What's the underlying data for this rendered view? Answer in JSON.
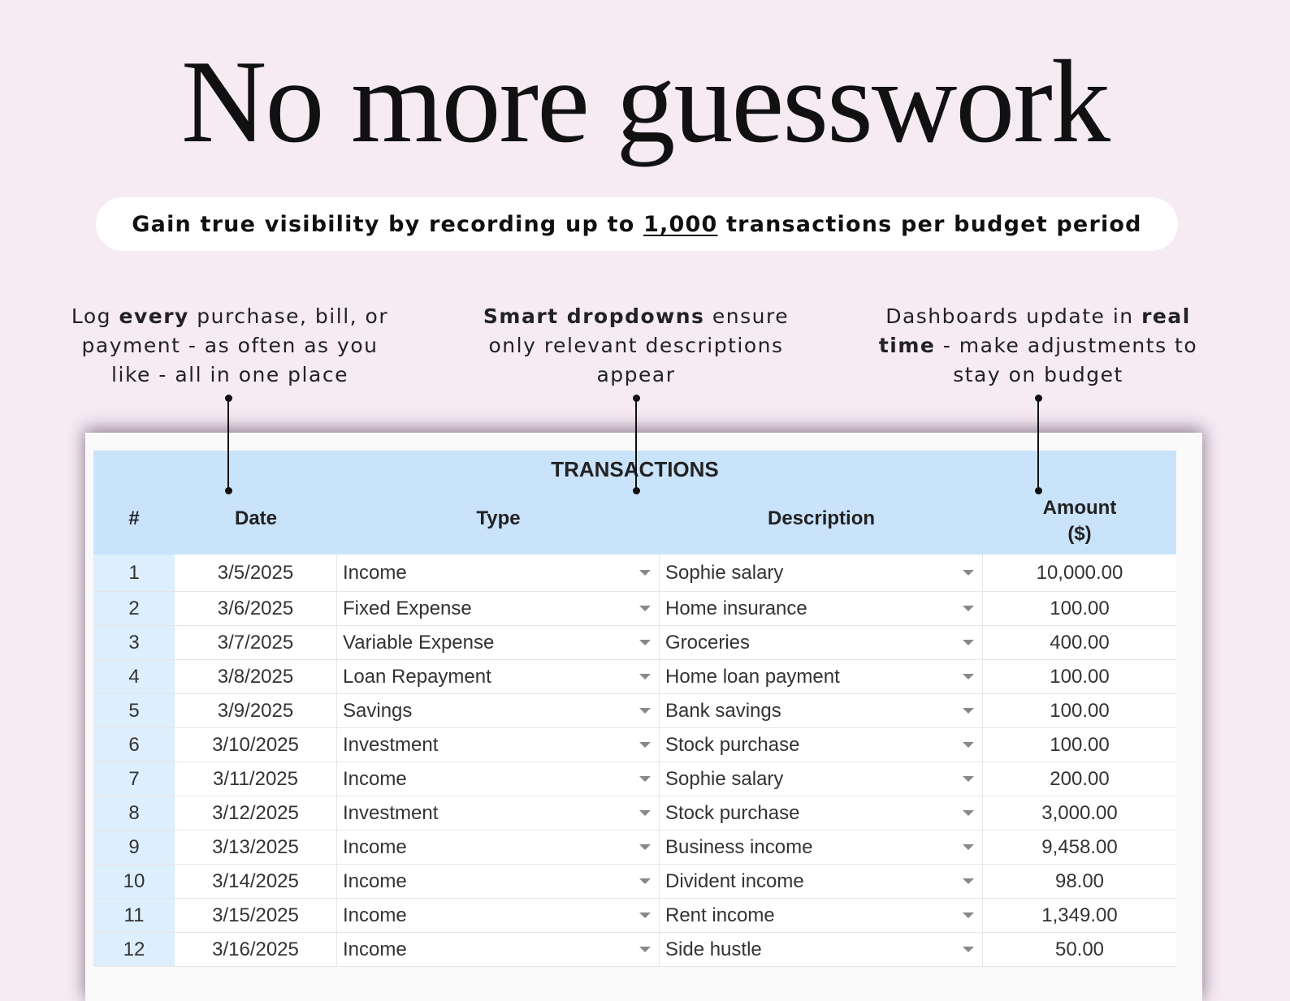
{
  "headline": "No more guesswork",
  "banner": {
    "before": "Gain true visibility by recording up to ",
    "highlight": "1,000",
    "after": " transactions per budget period"
  },
  "captions": [
    {
      "pre": "Log ",
      "bold": "every",
      "post": " purchase, bill, or payment - as often as you like - all in one place"
    },
    {
      "pre": "",
      "bold": "Smart dropdowns",
      "post": " ensure only relevant descriptions appear"
    },
    {
      "pre": "Dashboards update in ",
      "bold": "real time",
      "post": " - make adjustments to stay on budget"
    }
  ],
  "table": {
    "title": "TRANSACTIONS",
    "headers": {
      "num": "#",
      "date": "Date",
      "type": "Type",
      "description": "Description",
      "amount_line1": "Amount",
      "amount_line2": "($)"
    },
    "rows": [
      {
        "num": "1",
        "date": "3/5/2025",
        "type": "Income",
        "description": "Sophie salary",
        "amount": "10,000.00"
      },
      {
        "num": "2",
        "date": "3/6/2025",
        "type": "Fixed Expense",
        "description": "Home insurance",
        "amount": "100.00"
      },
      {
        "num": "3",
        "date": "3/7/2025",
        "type": "Variable Expense",
        "description": "Groceries",
        "amount": "400.00"
      },
      {
        "num": "4",
        "date": "3/8/2025",
        "type": "Loan Repayment",
        "description": "Home loan payment",
        "amount": "100.00"
      },
      {
        "num": "5",
        "date": "3/9/2025",
        "type": "Savings",
        "description": "Bank savings",
        "amount": "100.00"
      },
      {
        "num": "6",
        "date": "3/10/2025",
        "type": "Investment",
        "description": "Stock purchase",
        "amount": "100.00"
      },
      {
        "num": "7",
        "date": "3/11/2025",
        "type": "Income",
        "description": "Sophie salary",
        "amount": "200.00"
      },
      {
        "num": "8",
        "date": "3/12/2025",
        "type": "Investment",
        "description": "Stock purchase",
        "amount": "3,000.00"
      },
      {
        "num": "9",
        "date": "3/13/2025",
        "type": "Income",
        "description": "Business income",
        "amount": "9,458.00"
      },
      {
        "num": "10",
        "date": "3/14/2025",
        "type": "Income",
        "description": "Divident income",
        "amount": "98.00"
      },
      {
        "num": "11",
        "date": "3/15/2025",
        "type": "Income",
        "description": "Rent income",
        "amount": "1,349.00"
      },
      {
        "num": "12",
        "date": "3/16/2025",
        "type": "Income",
        "description": "Side hustle",
        "amount": "50.00"
      }
    ]
  },
  "colors": {
    "background": "#f6eaf3",
    "header_blue": "#c9e3fb",
    "index_col": "#ddeefc"
  }
}
